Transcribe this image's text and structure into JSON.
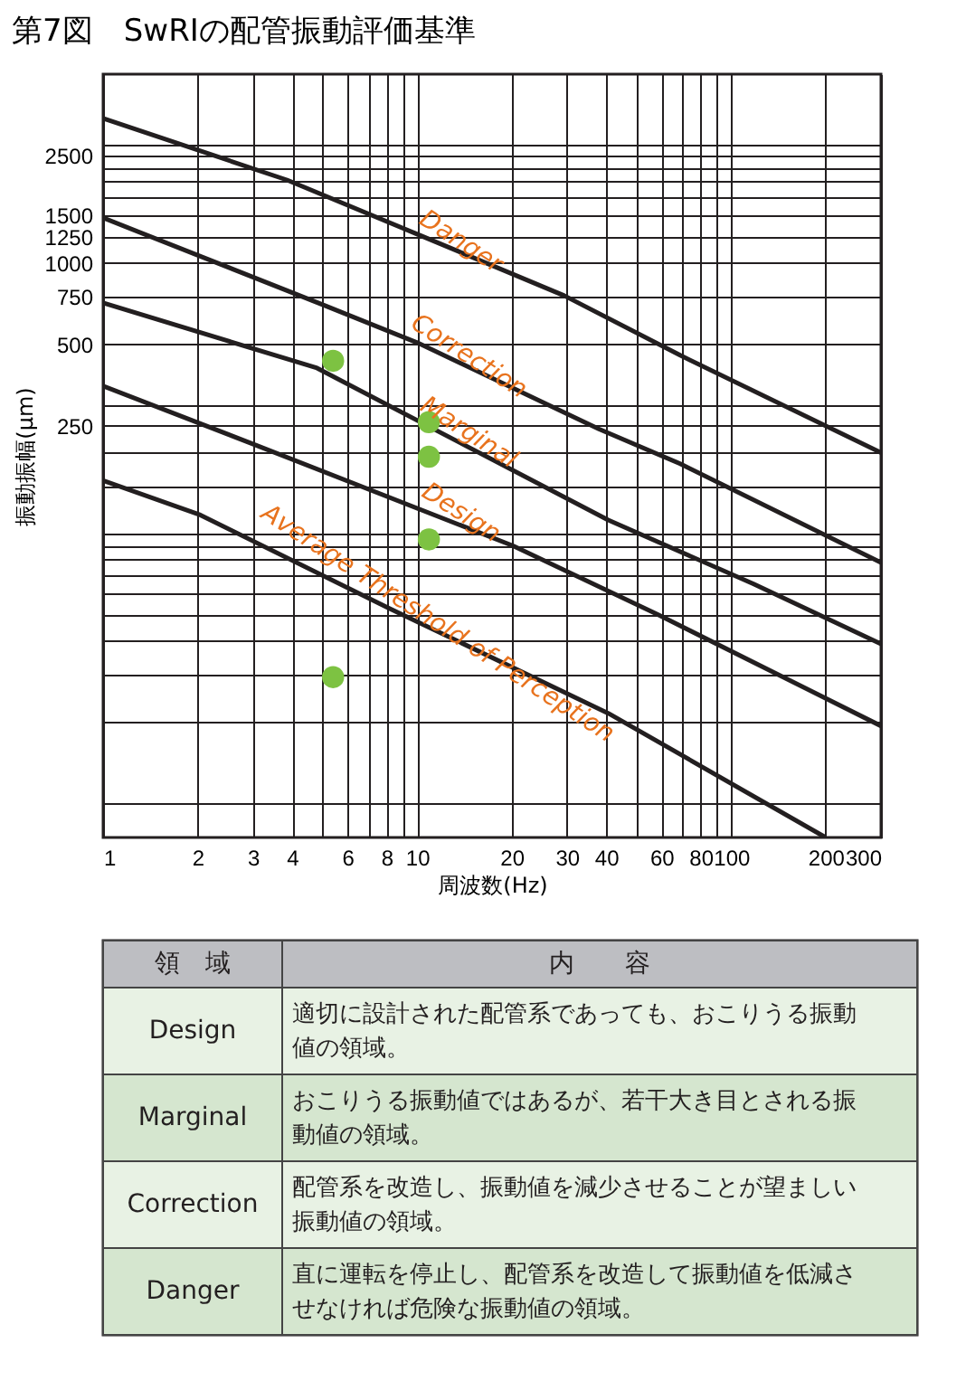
{
  "chart_data": {
    "type": "line",
    "title": "第7図　SwRIの配管振動評価基準",
    "xlabel": "周波数(Hz)",
    "ylabel": "振動振幅(μm)",
    "log": "xy",
    "grid": true,
    "xlim": [
      1,
      300
    ],
    "ylim": [
      7.5,
      5000
    ],
    "xticks": [
      1,
      2,
      3,
      4,
      {
        "value": 5,
        "label": null
      },
      6,
      {
        "value": 7,
        "label": null
      },
      8,
      {
        "value": 9,
        "label": null
      },
      10,
      20,
      30,
      40,
      {
        "value": 50,
        "label": null
      },
      60,
      {
        "value": 70,
        "label": null
      },
      80,
      {
        "value": 90,
        "label": null
      },
      100,
      200,
      300
    ],
    "yticks": [
      {
        "value": 10,
        "label": null
      },
      {
        "value": 20,
        "label": null
      },
      {
        "value": 30,
        "label": null
      },
      {
        "value": 40,
        "label": null
      },
      {
        "value": 50,
        "label": null
      },
      {
        "value": 60,
        "label": null
      },
      {
        "value": 70,
        "label": null
      },
      {
        "value": 80,
        "label": null
      },
      {
        "value": 90,
        "label": null
      },
      {
        "value": 100,
        "label": null
      },
      {
        "value": 150,
        "label": null
      },
      {
        "value": 200,
        "label": null
      },
      250,
      {
        "value": 300,
        "label": null
      },
      500,
      750,
      1000,
      1250,
      1500,
      {
        "value": 1750,
        "label": null
      },
      {
        "value": 2000,
        "label": null
      },
      {
        "value": 2250,
        "label": null
      },
      2500,
      {
        "value": 2750,
        "label": null
      }
    ],
    "series": [
      {
        "color": "#231f20",
        "x": [
          1,
          3.85,
          10,
          29.4,
          68.8,
          300
        ],
        "values": [
          3430,
          2030,
          1280,
          758,
          456,
          199
        ]
      },
      {
        "color": "#231f20",
        "x": [
          1,
          5,
          10,
          38,
          68.8,
          300
        ],
        "values": [
          1470,
          702,
          508,
          243,
          181,
          78
        ]
      },
      {
        "color": "#231f20",
        "x": [
          1,
          4.8,
          40.6,
          118,
          300
        ],
        "values": [
          713,
          409,
          112,
          65,
          39
        ]
      },
      {
        "color": "#231f20",
        "x": [
          1,
          3.1,
          20.2,
          58.6,
          300
        ],
        "values": [
          351,
          211,
          90,
          50,
          19.4
        ]
      },
      {
        "color": "#231f20",
        "x": [
          1,
          2.04,
          8.1,
          40.6,
          200
        ],
        "values": [
          157,
          117,
          53,
          21.6,
          7.5
        ]
      },
      {
        "type": "scatter",
        "color": "#7dc242",
        "marker": "circle",
        "x": [
          5.4,
          10.9,
          10.9,
          10.9,
          5.4
        ],
        "values": [
          435,
          258,
          192,
          95,
          29.4
        ]
      }
    ],
    "annotations": [
      "Danger",
      "Correction",
      "Marginal",
      "Design",
      "Average Threshold of Perception",
      "領　域",
      "内　　容",
      "Design",
      "適切に設計された配管系であっても、おこりうる振動値の領域。",
      "Marginal",
      "おこりうる振動値ではあるが、若干大き目とされる振動値の領域。",
      "Correction",
      "配管系を改造し、振動値を減少させることが望ましい振動値の領域。",
      "Danger",
      "直に運転を停止し、配管系を改造して振動値を低減させなければ危険な振動値の領域。"
    ]
  }
}
